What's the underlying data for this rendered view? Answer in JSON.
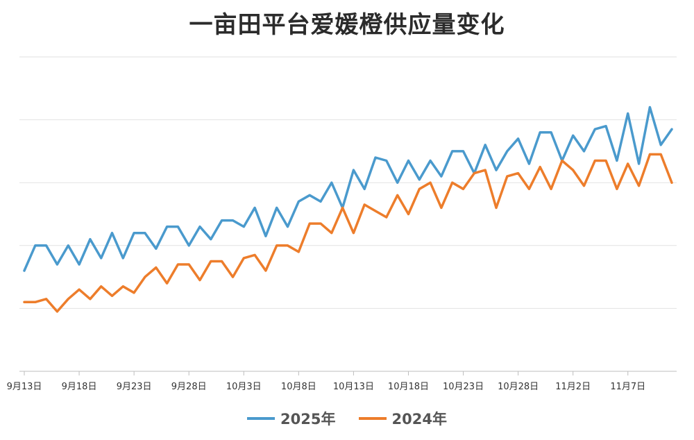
{
  "chart_data": {
    "type": "line",
    "title": "一亩田平台爱媛橙供应量变化",
    "xlabel": "",
    "ylabel": "",
    "ylim": [
      0,
      5
    ],
    "grid": true,
    "legend_position": "bottom",
    "y_tick_labels_shown": false,
    "x_tick_labels": [
      "9月13日",
      "9月18日",
      "9月23日",
      "9月28日",
      "10月3日",
      "10月8日",
      "10月13日",
      "10月18日",
      "10月23日",
      "10月28日",
      "11月2日",
      "11月7日"
    ],
    "x_tick_step": 5,
    "series": [
      {
        "name": "2025年",
        "color": "#4a9acd",
        "values": [
          1.6,
          2.0,
          2.0,
          1.7,
          2.0,
          1.7,
          2.1,
          1.8,
          2.2,
          1.8,
          2.2,
          2.2,
          1.95,
          2.3,
          2.3,
          2.0,
          2.3,
          2.1,
          2.4,
          2.4,
          2.3,
          2.6,
          2.15,
          2.6,
          2.3,
          2.7,
          2.8,
          2.7,
          3.0,
          2.6,
          3.2,
          2.9,
          3.4,
          3.35,
          3.0,
          3.35,
          3.05,
          3.35,
          3.1,
          3.5,
          3.5,
          3.15,
          3.6,
          3.2,
          3.5,
          3.7,
          3.3,
          3.8,
          3.8,
          3.35,
          3.75,
          3.5,
          3.85,
          3.9,
          3.35,
          4.1,
          3.3,
          4.2,
          3.6,
          3.85
        ]
      },
      {
        "name": "2024年",
        "color": "#ed7d2b",
        "values": [
          1.1,
          1.1,
          1.15,
          0.95,
          1.15,
          1.3,
          1.15,
          1.35,
          1.2,
          1.35,
          1.25,
          1.5,
          1.65,
          1.4,
          1.7,
          1.7,
          1.45,
          1.75,
          1.75,
          1.5,
          1.8,
          1.85,
          1.6,
          2.0,
          2.0,
          1.9,
          2.35,
          2.35,
          2.2,
          2.6,
          2.2,
          2.65,
          2.55,
          2.45,
          2.8,
          2.5,
          2.9,
          3.0,
          2.6,
          3.0,
          2.9,
          3.15,
          3.2,
          2.6,
          3.1,
          3.15,
          2.9,
          3.25,
          2.9,
          3.35,
          3.2,
          2.95,
          3.35,
          3.35,
          2.9,
          3.3,
          2.95,
          3.45,
          3.45,
          3.0
        ]
      }
    ]
  }
}
